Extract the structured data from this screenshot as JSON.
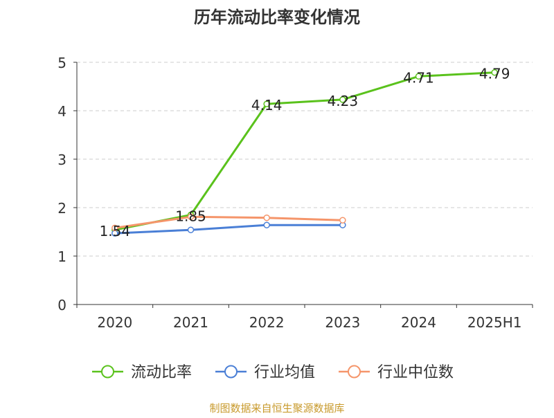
{
  "chart_data": {
    "type": "line",
    "title": "历年流动比率变化情况",
    "categories": [
      "2020",
      "2021",
      "2022",
      "2023",
      "2024",
      "2025H1"
    ],
    "y_ticks": [
      "0",
      "1",
      "2",
      "3",
      "4",
      "5"
    ],
    "ylim": [
      0,
      5
    ],
    "grid": true,
    "legend_position": "bottom",
    "series": [
      {
        "name": "流动比率",
        "color": "#5ac21c",
        "values": [
          1.54,
          1.85,
          4.14,
          4.23,
          4.71,
          4.79
        ],
        "labels": [
          "1.54",
          "1.85",
          "4.14",
          "4.23",
          "4.71",
          "4.79"
        ]
      },
      {
        "name": "行业均值",
        "color": "#4a7fd6",
        "values": [
          1.47,
          1.54,
          1.64,
          1.64,
          null,
          null
        ],
        "labels": []
      },
      {
        "name": "行业中位数",
        "color": "#f5956a",
        "values": [
          1.58,
          1.81,
          1.79,
          1.74,
          null,
          null
        ],
        "labels": []
      }
    ]
  },
  "source_note": "制图数据来自恒生聚源数据库"
}
